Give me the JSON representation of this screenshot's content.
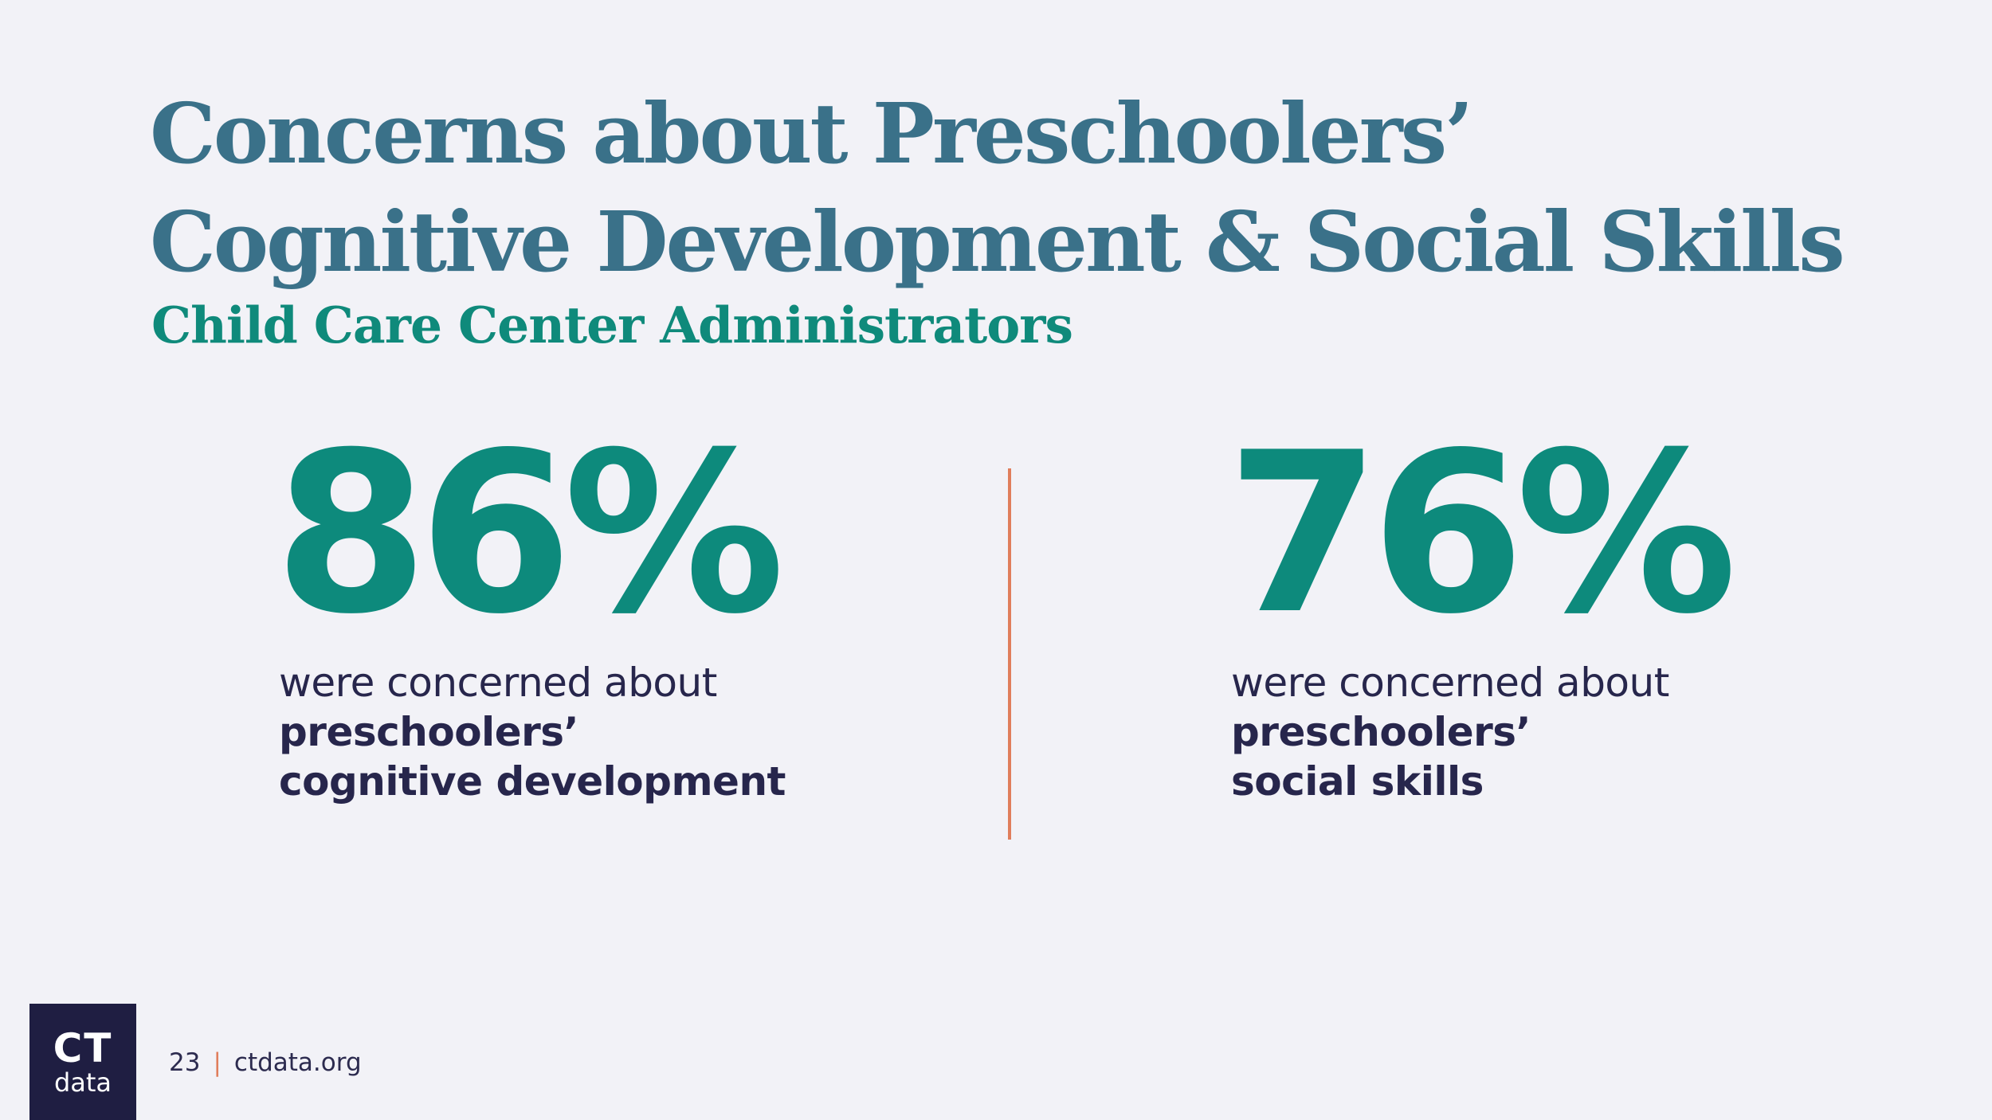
{
  "title": {
    "line1": "Concerns about Preschoolers’",
    "line2": "Cognitive Development & Social Skills"
  },
  "subtitle": "Child Care Center Administrators",
  "stats": [
    {
      "value": "86%",
      "text_regular": "were concerned about",
      "text_bold_1": "preschoolers’",
      "text_bold_2": "cognitive development"
    },
    {
      "value": "76%",
      "text_regular": "were concerned about",
      "text_bold_1": "preschoolers’",
      "text_bold_2": "social skills"
    }
  ],
  "logo": {
    "top": "CT",
    "bottom": "data"
  },
  "footer": {
    "page_number": "23",
    "separator": "|",
    "website": "ctdata.org"
  },
  "colors": {
    "background": "#f2f2f7",
    "title": "#3a7189",
    "accent_teal": "#0d8a7c",
    "body_text": "#27264c",
    "divider": "#e07e5c",
    "logo_bg": "#1f1e42"
  }
}
